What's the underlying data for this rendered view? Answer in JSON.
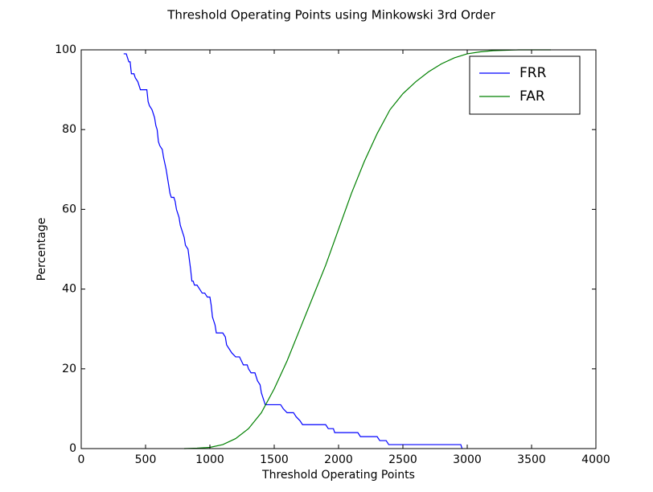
{
  "chart_data": {
    "type": "line",
    "title": "Threshold Operating Points using Minkowski 3rd Order",
    "x_label": "Threshold Operating Points",
    "y_label": "Percentage",
    "xlim": [
      0,
      4000
    ],
    "xticks": [
      0,
      500,
      1000,
      1500,
      2000,
      2500,
      3000,
      3500,
      4000
    ],
    "ylim": [
      0,
      100
    ],
    "yticks": [
      0,
      20,
      40,
      60,
      80,
      100
    ],
    "legend": "upper right",
    "series": [
      {
        "name": "FRR",
        "color": "#0000ff",
        "x": [
          330,
          350,
          360,
          370,
          380,
          390,
          410,
          420,
          440,
          460,
          510,
          520,
          530,
          550,
          570,
          580,
          590,
          600,
          610,
          630,
          640,
          660,
          680,
          690,
          700,
          720,
          730,
          740,
          760,
          770,
          790,
          800,
          810,
          830,
          850,
          860,
          870,
          880,
          900,
          920,
          940,
          960,
          980,
          1000,
          1010,
          1020,
          1040,
          1050,
          1070,
          1100,
          1120,
          1130,
          1150,
          1170,
          1200,
          1230,
          1260,
          1290,
          1300,
          1320,
          1350,
          1370,
          1390,
          1400,
          1420,
          1430,
          1460,
          1550,
          1570,
          1600,
          1650,
          1670,
          1700,
          1720,
          1800,
          1900,
          1920,
          1960,
          1970,
          2050,
          2150,
          2170,
          2300,
          2320,
          2370,
          2390,
          2500,
          2950,
          2960
        ],
        "values": [
          99,
          99,
          98,
          97,
          97,
          94,
          94,
          93,
          92,
          90,
          90,
          87,
          86,
          85,
          83,
          81,
          80,
          77,
          76,
          75,
          73,
          70,
          66,
          64,
          63,
          63,
          62,
          60,
          58,
          56,
          54,
          53,
          51,
          50,
          45,
          42,
          42,
          41,
          41,
          40,
          39,
          39,
          38,
          38,
          36,
          33,
          31,
          29,
          29,
          29,
          28,
          26,
          25,
          24,
          23,
          23,
          21,
          21,
          20,
          19,
          19,
          17,
          16,
          14,
          12,
          11,
          11,
          11,
          10,
          9,
          9,
          8,
          7,
          6,
          6,
          6,
          5,
          5,
          4,
          4,
          4,
          3,
          3,
          2,
          2,
          1,
          1,
          1,
          0
        ]
      },
      {
        "name": "FAR",
        "color": "#008000",
        "x": [
          800,
          900,
          1000,
          1100,
          1200,
          1300,
          1400,
          1500,
          1600,
          1700,
          1800,
          1900,
          2000,
          2100,
          2200,
          2300,
          2400,
          2500,
          2600,
          2700,
          2800,
          2900,
          3000,
          3100,
          3200,
          3400,
          3650
        ],
        "values": [
          0,
          0.1,
          0.3,
          1,
          2.5,
          5,
          9,
          15,
          22,
          30,
          38,
          46,
          55,
          64,
          72,
          79,
          85,
          89,
          92,
          94.5,
          96.5,
          98,
          99,
          99.5,
          99.8,
          100,
          100
        ]
      }
    ]
  }
}
